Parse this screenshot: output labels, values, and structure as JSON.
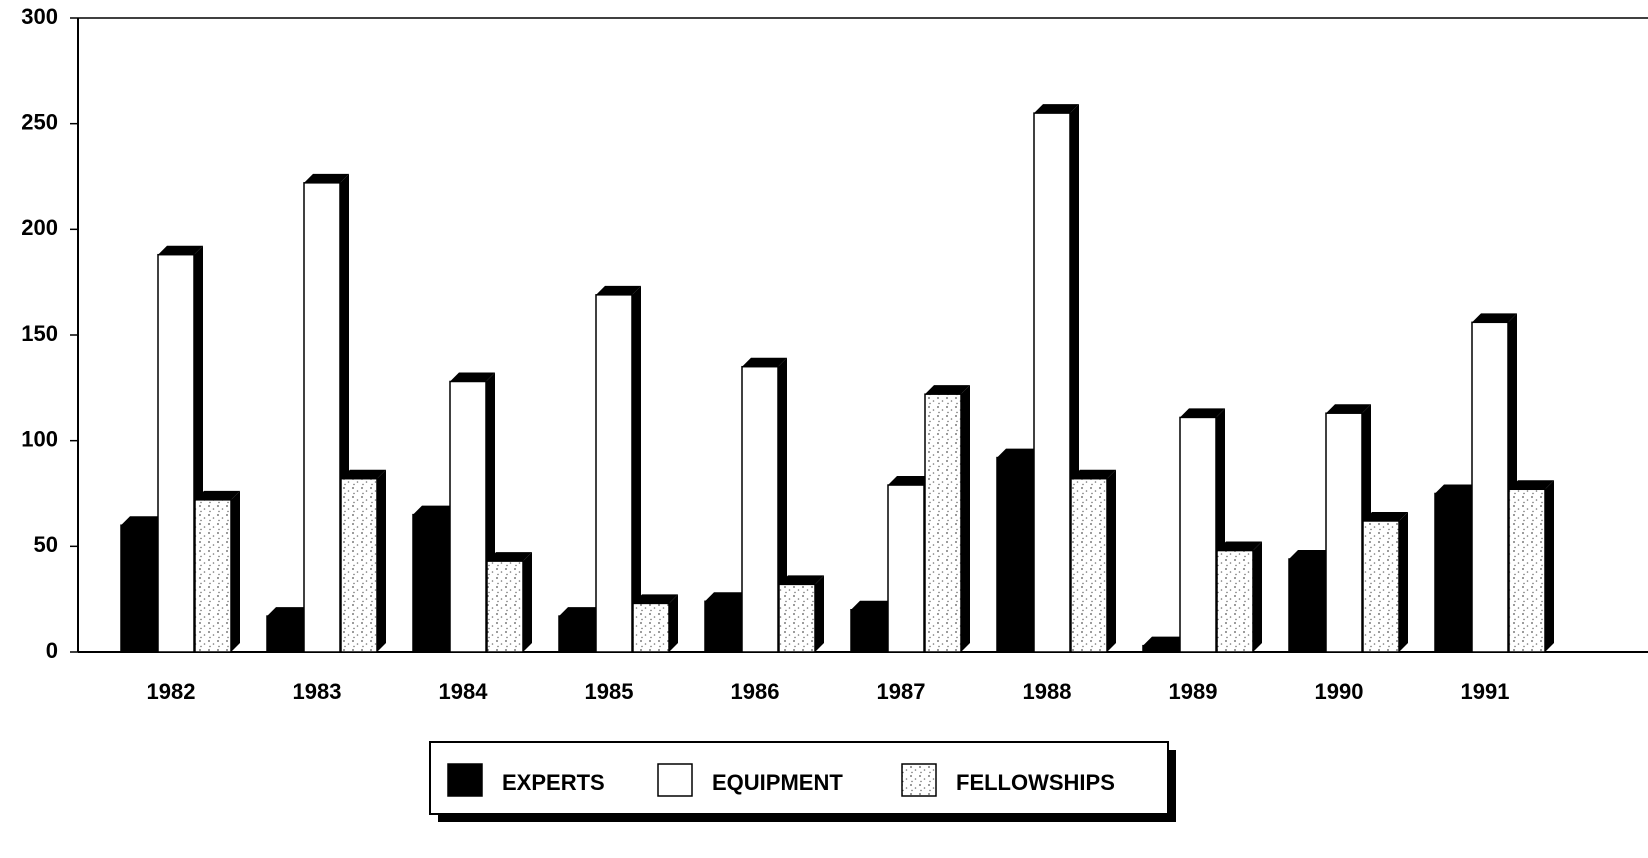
{
  "chart_data": {
    "type": "bar",
    "categories": [
      "1982",
      "1983",
      "1984",
      "1985",
      "1986",
      "1987",
      "1988",
      "1989",
      "1990",
      "1991"
    ],
    "series": [
      {
        "name": "EXPERTS",
        "color": "#000000",
        "values": [
          60,
          17,
          65,
          17,
          24,
          20,
          92,
          3,
          44,
          75
        ]
      },
      {
        "name": "EQUIPMENT",
        "color": "#ffffff",
        "values": [
          188,
          222,
          128,
          169,
          135,
          79,
          255,
          111,
          113,
          156
        ]
      },
      {
        "name": "FELLOWSHIPS",
        "color": "#ffffff",
        "pattern": "stipple",
        "values": [
          72,
          82,
          43,
          23,
          32,
          122,
          82,
          48,
          62,
          77
        ]
      }
    ],
    "ylim": [
      0,
      300
    ],
    "yticks": [
      0,
      50,
      100,
      150,
      200,
      250,
      300
    ],
    "grid": false,
    "legend": "bottom"
  }
}
